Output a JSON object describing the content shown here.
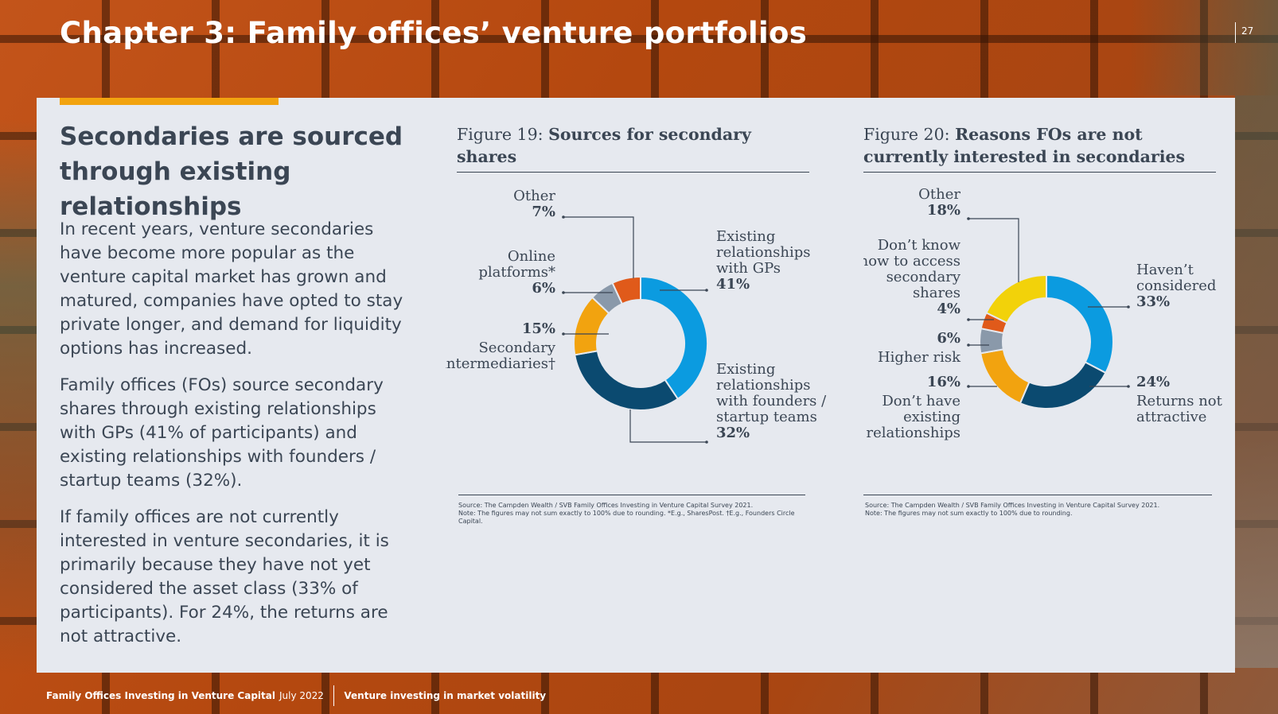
{
  "chapter_title": "Chapter 3: Family offices’ venture portfolios",
  "page_number": "27",
  "left": {
    "heading": "Secondaries are sourced through existing relationships",
    "paragraphs": [
      "In recent years, venture secondaries have become more popular as the venture capital market has grown and matured, companies have opted to stay private longer, and demand for liquidity options has increased.",
      "Family offices (FOs) source secondary shares through existing relationships with GPs (41% of participants) and existing relationships with founders / startup teams (32%).",
      "If family offices are not currently interested in venture secondaries, it is primarily because they have not yet considered the asset class (33% of participants). For 24%, the returns are not attractive."
    ]
  },
  "figure19": {
    "lead": "Figure 19:",
    "title": "Sources for secondary shares",
    "source": "Source: The Campden Wealth / SVB Family Offices Investing in Venture Capital Survey 2021.",
    "note": "Note: The figures may not sum exactly to 100% due to rounding. *E.g., SharesPost. †E.g., Founders Circle Capital."
  },
  "figure20": {
    "lead": "Figure 20:",
    "title": "Reasons FOs are not currently interested in secondaries",
    "source": "Source: The Campden Wealth / SVB Family Offices Investing in Venture Capital Survey 2021.",
    "note": "Note: The figures may not sum exactly to 100% due to rounding."
  },
  "chart_data": [
    {
      "type": "pie",
      "donut": true,
      "title": "Sources for secondary shares",
      "categories": [
        "Existing relationships with GPs",
        "Existing relationships with founders / startup teams",
        "Secondary intermediaries†",
        "Online platforms*",
        "Other"
      ],
      "label_lines": [
        [
          "Existing",
          "relationships",
          "with GPs"
        ],
        [
          "Existing",
          "relationships",
          "with founders /",
          "startup teams"
        ],
        [
          "Secondary",
          "intermediaries†"
        ],
        [
          "Online",
          "platforms*"
        ],
        [
          "Other"
        ]
      ],
      "values": [
        41,
        32,
        15,
        6,
        7
      ],
      "labels": [
        "41%",
        "32%",
        "15%",
        "6%",
        "7%"
      ],
      "colors": [
        "#0b9be0",
        "#0b4a70",
        "#f2a30f",
        "#8a99aa",
        "#e05a1a"
      ]
    },
    {
      "type": "pie",
      "donut": true,
      "title": "Reasons FOs are not currently interested in secondaries",
      "categories": [
        "Haven’t considered",
        "Returns not attractive",
        "Don’t have existing relationships",
        "Higher risk",
        "Don’t know how to access secondary shares",
        "Other"
      ],
      "label_lines": [
        [
          "Haven’t",
          "considered"
        ],
        [
          "Returns not",
          "attractive"
        ],
        [
          "Don’t have",
          "existing",
          "relationships"
        ],
        [
          "Higher risk"
        ],
        [
          "Don’t know",
          "how to access",
          "secondary",
          "shares"
        ],
        [
          "Other"
        ]
      ],
      "values": [
        33,
        24,
        16,
        6,
        4,
        18
      ],
      "labels": [
        "33%",
        "24%",
        "16%",
        "6%",
        "4%",
        "18%"
      ],
      "colors": [
        "#0b9be0",
        "#0b4a70",
        "#f2a30f",
        "#8a99aa",
        "#e05a1a",
        "#f2d20a"
      ]
    }
  ],
  "footer": {
    "publication": "Family Offices Investing in Venture Capital",
    "date": "July 2022",
    "section": "Venture investing in market volatility"
  },
  "colors": {
    "accent": "#f2a30f",
    "text": "#3b4654",
    "panel": "#e6e9ef"
  }
}
